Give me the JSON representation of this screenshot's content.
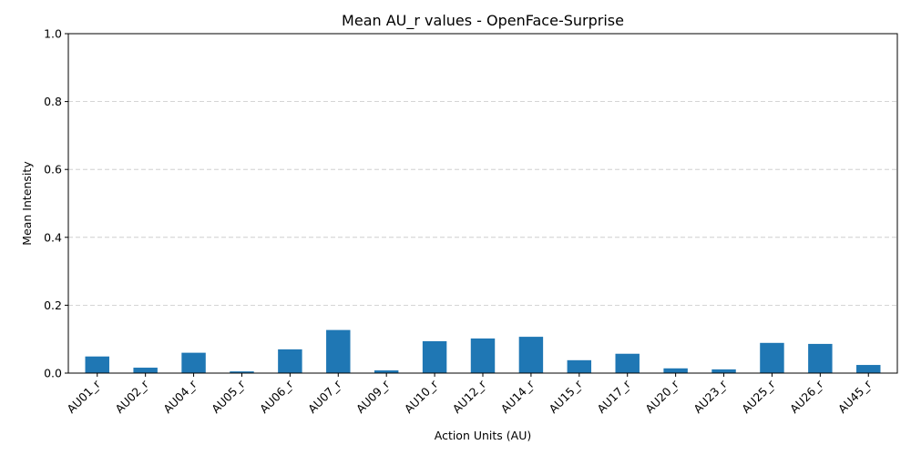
{
  "chart_data": {
    "type": "bar",
    "title": "Mean AU_r values - OpenFace-Surprise",
    "xlabel": "Action Units (AU)",
    "ylabel": "Mean Intensity",
    "ylim": [
      0,
      1.0
    ],
    "yticks": [
      "0.0",
      "0.2",
      "0.4",
      "0.6",
      "0.8",
      "1.0"
    ],
    "grid": "y-dashed",
    "bar_color": "#1f77b4",
    "categories": [
      "AU01_r",
      "AU02_r",
      "AU04_r",
      "AU05_r",
      "AU06_r",
      "AU07_r",
      "AU09_r",
      "AU10_r",
      "AU12_r",
      "AU14_r",
      "AU15_r",
      "AU17_r",
      "AU20_r",
      "AU23_r",
      "AU25_r",
      "AU26_r",
      "AU45_r"
    ],
    "values": [
      0.049,
      0.016,
      0.06,
      0.005,
      0.07,
      0.127,
      0.008,
      0.094,
      0.102,
      0.107,
      0.038,
      0.057,
      0.014,
      0.011,
      0.089,
      0.086,
      0.024
    ]
  }
}
